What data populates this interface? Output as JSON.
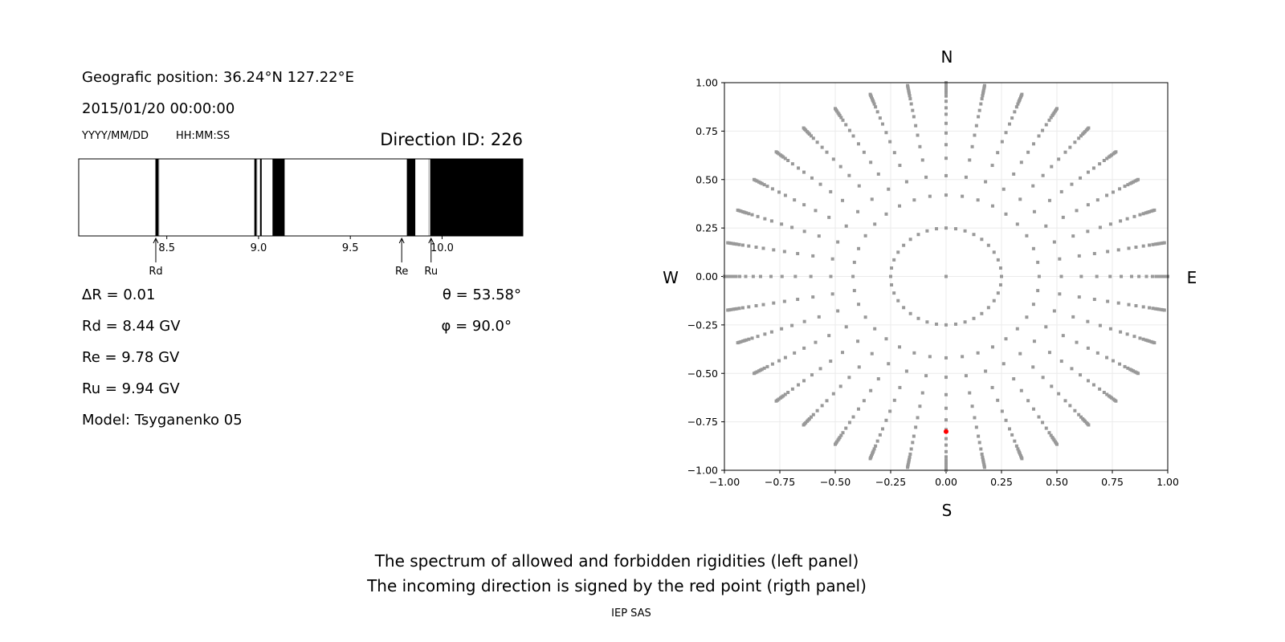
{
  "info": {
    "position": "Geografic position: 36.24°N 127.22°E",
    "datetime": "2015/01/20 00:00:00",
    "date_format": "YYYY/MM/DD",
    "time_format": "HH:MM:SS",
    "direction_id": "Direction ID: 226",
    "delta_r": "ΔR = 0.01",
    "rd": "Rd = 8.44 GV",
    "re": "Re = 9.78 GV",
    "ru": "Ru = 9.94 GV",
    "model": "Model: Tsyganenko 05",
    "theta": "θ = 53.58°",
    "phi": "φ = 90.0°"
  },
  "caption": {
    "line1": "The spectrum of allowed and forbidden rigidities (left panel)",
    "line2": "The incoming direction is signed by the red point (rigth panel)",
    "credit": "IEP SAS"
  },
  "chart_data": [
    {
      "type": "bar",
      "description_kind": "rigidity spectrum strip",
      "xlim": [
        8.02,
        10.44
      ],
      "xticks": [
        "8.5",
        "9.0",
        "9.5",
        "10.0"
      ],
      "xtick_values": [
        8.5,
        9.0,
        9.5,
        10.0
      ],
      "forbidden_bands": [
        [
          8.438,
          8.455
        ],
        [
          8.977,
          8.989
        ],
        [
          9.008,
          9.017
        ],
        [
          9.076,
          9.142
        ],
        [
          9.808,
          9.854
        ],
        [
          9.935,
          10.44
        ]
      ],
      "penumbra_bands": [
        [
          8.455,
          8.46
        ],
        [
          8.989,
          8.994
        ],
        [
          9.925,
          9.93
        ]
      ],
      "colors": {
        "forbidden": "#000000",
        "allowed": "#ffffff",
        "penumbra": "#bbbbbb"
      },
      "markers": [
        {
          "label": "Rd",
          "value": 8.44
        },
        {
          "label": "Re",
          "value": 9.78
        },
        {
          "label": "Ru",
          "value": 9.94
        }
      ]
    },
    {
      "type": "scatter",
      "xlim": [
        -1.0,
        1.0
      ],
      "ylim": [
        -1.0,
        1.0
      ],
      "grid": true,
      "xticks": [
        "−1.00",
        "−0.75",
        "−0.50",
        "−0.25",
        "0.00",
        "0.25",
        "0.50",
        "0.75",
        "1.00"
      ],
      "yticks": [
        "−1.00",
        "−0.75",
        "−0.50",
        "−0.25",
        "0.00",
        "0.25",
        "0.50",
        "0.75",
        "1.00"
      ],
      "tick_values": [
        -1.0,
        -0.75,
        -0.5,
        -0.25,
        0.0,
        0.25,
        0.5,
        0.75,
        1.0
      ],
      "directions": {
        "top": "N",
        "bottom": "S",
        "left": "W",
        "right": "E"
      },
      "grid_points": {
        "center": [
          0,
          0
        ],
        "inner_ring_radius": 0.25,
        "inner_ring_step_deg": 10,
        "spoke_step_deg": 10,
        "spoke_radii": [
          0.42,
          0.52,
          0.61,
          0.68,
          0.74,
          0.79,
          0.837,
          0.87,
          0.904,
          0.931,
          0.947,
          0.959,
          0.967,
          0.975,
          0.985,
          0.993,
          1.0
        ]
      },
      "point_color": "#999999",
      "highlight": {
        "x": 0.0,
        "y": -0.8,
        "color": "#ff0000"
      }
    }
  ]
}
